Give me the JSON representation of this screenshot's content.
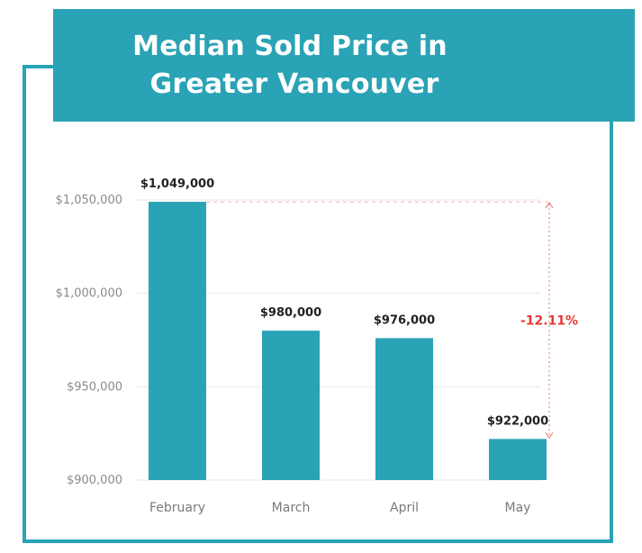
{
  "chart_data": {
    "type": "bar",
    "title_lines": [
      "Median Sold Price in",
      "Greater Vancouver"
    ],
    "categories": [
      "February",
      "March",
      "April",
      "May"
    ],
    "values": [
      1049000,
      980000,
      976000,
      922000
    ],
    "data_labels": [
      "$1,049,000",
      "$980,000",
      "$976,000",
      "$922,000"
    ],
    "ylim": [
      900000,
      1050000
    ],
    "yticks": [
      900000,
      950000,
      1000000,
      1050000
    ],
    "ytick_labels": [
      "$900,000",
      "$950,000",
      "$1,000,000",
      "$1,050,000"
    ],
    "xlabel": "",
    "ylabel": "",
    "grid": true,
    "annotation": {
      "text": "-12.11%",
      "from_category": "February",
      "to_category": "May"
    },
    "colors": {
      "bar": "#29a3b5",
      "accent": "#29a3b5",
      "annotation": "#e53935",
      "grid": "#e8e8e8"
    }
  }
}
